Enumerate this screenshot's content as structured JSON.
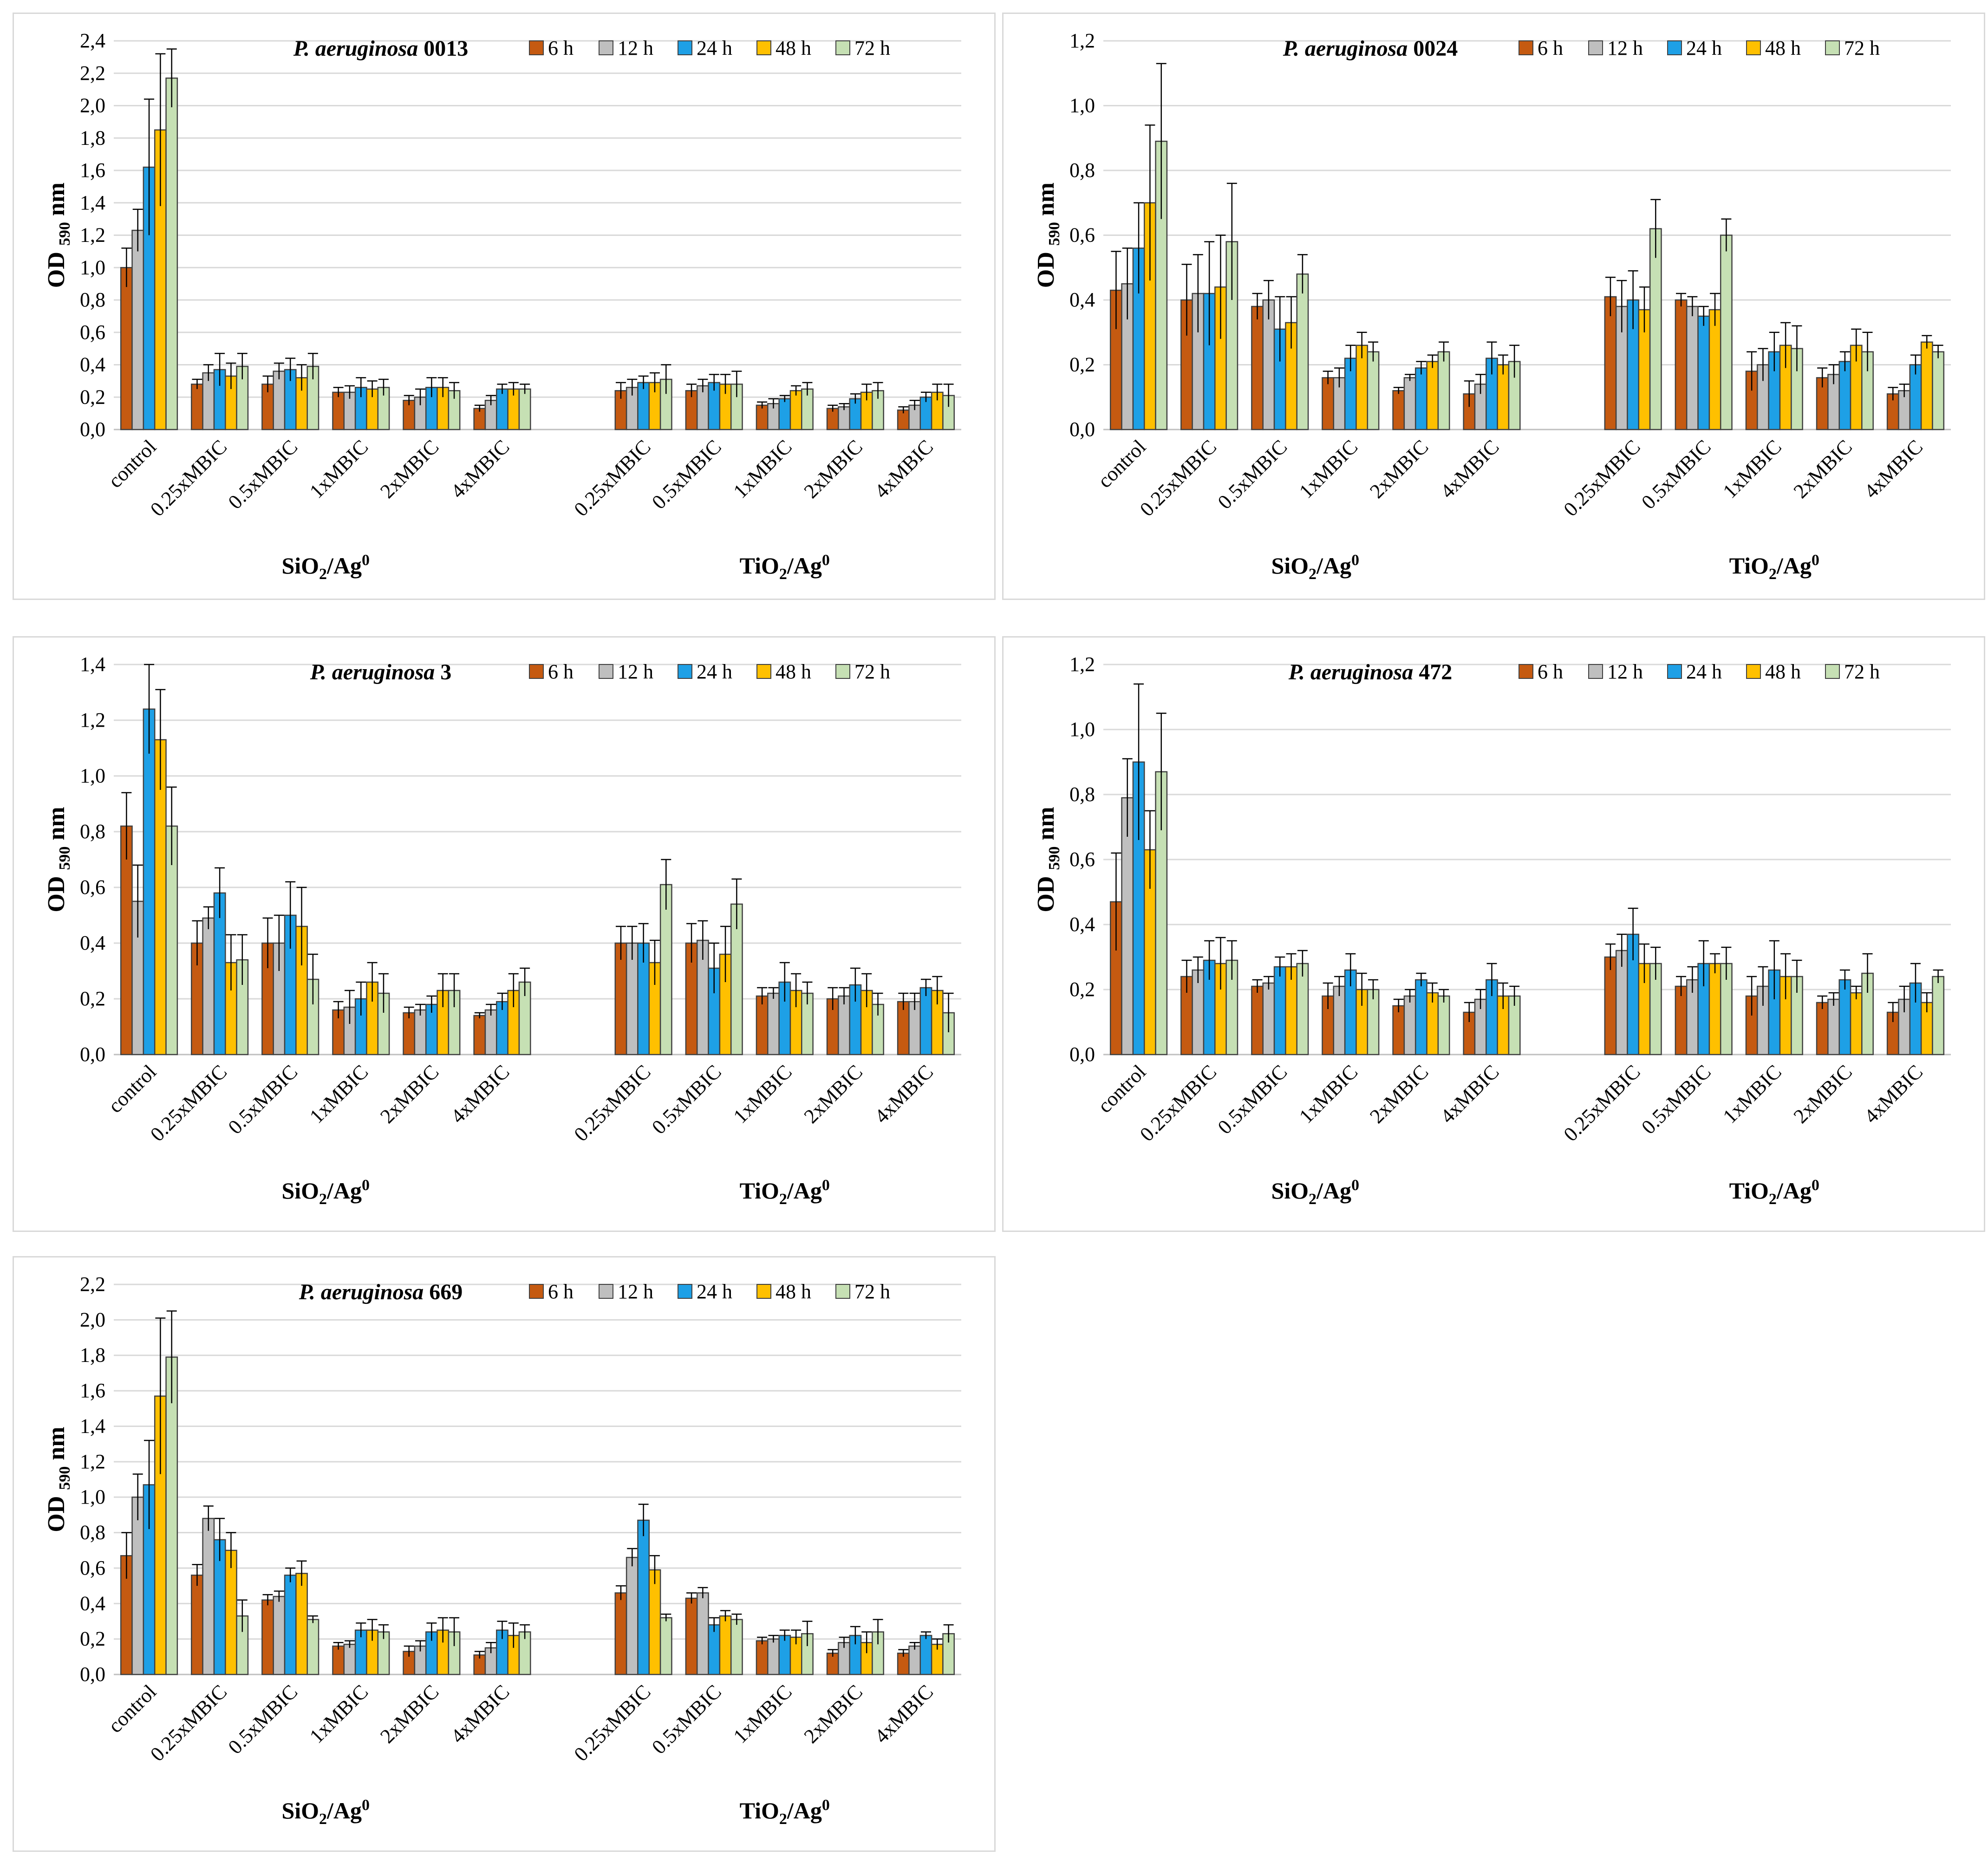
{
  "palette": {
    "6 h": "#c55a11",
    "12 h": "#bfbfbf",
    "24 h": "#1ea0e6",
    "48 h": "#ffc000",
    "72 h": "#c6e0b4"
  },
  "chart_data": [
    {
      "type": "bar",
      "title_italic": "P. aeruginosa",
      "title_strain": "0013",
      "ylabel": "OD",
      "ylabel_sub": "590",
      "ylabel_unit": "nm",
      "ylim": [
        0,
        2.4
      ],
      "ytick_step": 0.2,
      "ytick_labels": [
        "0,0",
        "0,2",
        "0,4",
        "0,6",
        "0,8",
        "1,0",
        "1,2",
        "1,4",
        "1,6",
        "1,8",
        "2,0",
        "2,2",
        "2,4"
      ],
      "legend": [
        "6 h",
        "12 h",
        "24 h",
        "48 h",
        "72 h"
      ],
      "categories": [
        "control",
        "0.25xMBIC",
        "0.5xMBIC",
        "1xMBIC",
        "2xMBIC",
        "4xMBIC",
        "",
        "0.25xMBIC",
        "0.5xMBIC",
        "1xMBIC",
        "2xMBIC",
        "4xMBIC"
      ],
      "group_labels": [
        {
          "main": "SiO",
          "sub": "2",
          "rest": "/Ag",
          "sup": "0"
        },
        {
          "main": "TiO",
          "sub": "2",
          "rest": "/Ag",
          "sup": "0"
        }
      ],
      "series": [
        {
          "name": "6 h",
          "values": [
            1.0,
            0.28,
            0.28,
            0.23,
            0.18,
            0.13,
            null,
            0.24,
            0.24,
            0.15,
            0.13,
            0.12
          ],
          "errors": [
            0.12,
            0.03,
            0.05,
            0.03,
            0.03,
            0.02,
            null,
            0.05,
            0.04,
            0.02,
            0.02,
            0.02
          ]
        },
        {
          "name": "12 h",
          "values": [
            1.23,
            0.35,
            0.36,
            0.23,
            0.2,
            0.18,
            null,
            0.26,
            0.27,
            0.16,
            0.14,
            0.15
          ],
          "errors": [
            0.13,
            0.05,
            0.05,
            0.04,
            0.05,
            0.03,
            null,
            0.05,
            0.04,
            0.03,
            0.02,
            0.03
          ]
        },
        {
          "name": "24 h",
          "values": [
            1.62,
            0.37,
            0.37,
            0.26,
            0.26,
            0.25,
            null,
            0.29,
            0.29,
            0.19,
            0.19,
            0.2
          ],
          "errors": [
            0.42,
            0.1,
            0.07,
            0.06,
            0.06,
            0.03,
            null,
            0.04,
            0.05,
            0.02,
            0.03,
            0.03
          ]
        },
        {
          "name": "48 h",
          "values": [
            1.85,
            0.33,
            0.32,
            0.25,
            0.26,
            0.25,
            null,
            0.29,
            0.28,
            0.24,
            0.23,
            0.23
          ],
          "errors": [
            0.47,
            0.08,
            0.08,
            0.05,
            0.06,
            0.04,
            null,
            0.06,
            0.06,
            0.03,
            0.05,
            0.05
          ]
        },
        {
          "name": "72 h",
          "values": [
            2.17,
            0.39,
            0.39,
            0.26,
            0.24,
            0.25,
            null,
            0.31,
            0.28,
            0.25,
            0.24,
            0.21
          ],
          "errors": [
            0.18,
            0.08,
            0.08,
            0.05,
            0.05,
            0.03,
            null,
            0.09,
            0.08,
            0.04,
            0.05,
            0.07
          ]
        }
      ]
    },
    {
      "type": "bar",
      "title_italic": "P. aeruginosa",
      "title_strain": "0024",
      "ylabel": "OD",
      "ylabel_sub": "590",
      "ylabel_unit": "nm",
      "ylim": [
        0,
        1.2
      ],
      "ytick_step": 0.2,
      "ytick_labels": [
        "0,0",
        "0,2",
        "0,4",
        "0,6",
        "0,8",
        "1,0",
        "1,2"
      ],
      "legend": [
        "6 h",
        "12 h",
        "24 h",
        "48 h",
        "72 h"
      ],
      "categories": [
        "control",
        "0.25xMBIC",
        "0.5xMBIC",
        "1xMBIC",
        "2xMBIC",
        "4xMBIC",
        "",
        "0.25xMBIC",
        "0.5xMBIC",
        "1xMBIC",
        "2xMBIC",
        "4xMBIC"
      ],
      "group_labels": [
        {
          "main": "SiO",
          "sub": "2",
          "rest": "/Ag",
          "sup": "0"
        },
        {
          "main": "TiO",
          "sub": "2",
          "rest": "/Ag",
          "sup": "0"
        }
      ],
      "series": [
        {
          "name": "6 h",
          "values": [
            0.43,
            0.4,
            0.38,
            0.16,
            0.12,
            0.11,
            null,
            0.41,
            0.4,
            0.18,
            0.16,
            0.11
          ],
          "errors": [
            0.12,
            0.11,
            0.04,
            0.02,
            0.01,
            0.04,
            null,
            0.06,
            0.02,
            0.06,
            0.03,
            0.02
          ]
        },
        {
          "name": "12 h",
          "values": [
            0.45,
            0.42,
            0.4,
            0.16,
            0.16,
            0.14,
            null,
            0.38,
            0.38,
            0.2,
            0.17,
            0.12
          ],
          "errors": [
            0.11,
            0.12,
            0.06,
            0.03,
            0.01,
            0.03,
            null,
            0.08,
            0.03,
            0.05,
            0.03,
            0.02
          ]
        },
        {
          "name": "24 h",
          "values": [
            0.56,
            0.42,
            0.31,
            0.22,
            0.19,
            0.22,
            null,
            0.4,
            0.35,
            0.24,
            0.21,
            0.2
          ],
          "errors": [
            0.14,
            0.16,
            0.1,
            0.04,
            0.02,
            0.05,
            null,
            0.09,
            0.03,
            0.06,
            0.03,
            0.03
          ]
        },
        {
          "name": "48 h",
          "values": [
            0.7,
            0.44,
            0.33,
            0.26,
            0.21,
            0.2,
            null,
            0.37,
            0.37,
            0.26,
            0.26,
            0.27
          ],
          "errors": [
            0.24,
            0.16,
            0.08,
            0.04,
            0.02,
            0.03,
            null,
            0.07,
            0.05,
            0.07,
            0.05,
            0.02
          ]
        },
        {
          "name": "72 h",
          "values": [
            0.89,
            0.58,
            0.48,
            0.24,
            0.24,
            0.21,
            null,
            0.62,
            0.6,
            0.25,
            0.24,
            0.24
          ],
          "errors": [
            0.24,
            0.18,
            0.06,
            0.03,
            0.03,
            0.05,
            null,
            0.09,
            0.05,
            0.07,
            0.06,
            0.02
          ]
        }
      ]
    },
    {
      "type": "bar",
      "title_italic": "P. aeruginosa",
      "title_strain": "3",
      "ylabel": "OD",
      "ylabel_sub": "590",
      "ylabel_unit": "nm",
      "ylim": [
        0,
        1.4
      ],
      "ytick_step": 0.2,
      "ytick_labels": [
        "0,0",
        "0,2",
        "0,4",
        "0,6",
        "0,8",
        "1,0",
        "1,2",
        "1,4"
      ],
      "legend": [
        "6 h",
        "12 h",
        "24 h",
        "48 h",
        "72 h"
      ],
      "categories": [
        "control",
        "0.25xMBIC",
        "0.5xMBIC",
        "1xMBIC",
        "2xMBIC",
        "4xMBIC",
        "",
        "0.25xMBIC",
        "0.5xMBIC",
        "1xMBIC",
        "2xMBIC",
        "4xMBIC"
      ],
      "group_labels": [
        {
          "main": "SiO",
          "sub": "2",
          "rest": "/Ag",
          "sup": "0"
        },
        {
          "main": "TiO",
          "sub": "2",
          "rest": "/Ag",
          "sup": "0"
        }
      ],
      "series": [
        {
          "name": "6 h",
          "values": [
            0.82,
            0.4,
            0.4,
            0.16,
            0.15,
            0.14,
            null,
            0.4,
            0.4,
            0.21,
            0.2,
            0.19
          ],
          "errors": [
            0.12,
            0.08,
            0.09,
            0.03,
            0.02,
            0.01,
            null,
            0.06,
            0.07,
            0.03,
            0.04,
            0.03
          ]
        },
        {
          "name": "12 h",
          "values": [
            0.55,
            0.49,
            0.4,
            0.17,
            0.16,
            0.16,
            null,
            0.4,
            0.41,
            0.22,
            0.21,
            0.19
          ],
          "errors": [
            0.13,
            0.04,
            0.1,
            0.06,
            0.02,
            0.02,
            null,
            0.06,
            0.07,
            0.02,
            0.03,
            0.03
          ]
        },
        {
          "name": "24 h",
          "values": [
            1.24,
            0.58,
            0.5,
            0.2,
            0.18,
            0.19,
            null,
            0.4,
            0.31,
            0.26,
            0.25,
            0.24
          ],
          "errors": [
            0.16,
            0.09,
            0.12,
            0.06,
            0.03,
            0.03,
            null,
            0.07,
            0.09,
            0.07,
            0.06,
            0.03
          ]
        },
        {
          "name": "48 h",
          "values": [
            1.13,
            0.33,
            0.46,
            0.26,
            0.23,
            0.23,
            null,
            0.33,
            0.36,
            0.23,
            0.23,
            0.23
          ],
          "errors": [
            0.18,
            0.1,
            0.14,
            0.07,
            0.06,
            0.06,
            null,
            0.08,
            0.1,
            0.06,
            0.06,
            0.05
          ]
        },
        {
          "name": "72 h",
          "values": [
            0.82,
            0.34,
            0.27,
            0.22,
            0.23,
            0.26,
            null,
            0.61,
            0.54,
            0.22,
            0.18,
            0.15
          ],
          "errors": [
            0.14,
            0.09,
            0.09,
            0.07,
            0.06,
            0.05,
            null,
            0.09,
            0.09,
            0.04,
            0.04,
            0.07
          ]
        }
      ]
    },
    {
      "type": "bar",
      "title_italic": "P. aeruginosa",
      "title_strain": "472",
      "ylabel": "OD",
      "ylabel_sub": "590",
      "ylabel_unit": "nm",
      "ylim": [
        0,
        1.2
      ],
      "ytick_step": 0.2,
      "ytick_labels": [
        "0,0",
        "0,2",
        "0,4",
        "0,6",
        "0,8",
        "1,0",
        "1,2"
      ],
      "legend": [
        "6 h",
        "12 h",
        "24 h",
        "48 h",
        "72 h"
      ],
      "categories": [
        "control",
        "0.25xMBIC",
        "0.5xMBIC",
        "1xMBIC",
        "2xMBIC",
        "4xMBIC",
        "",
        "0.25xMBIC",
        "0.5xMBIC",
        "1xMBIC",
        "2xMBIC",
        "4xMBIC"
      ],
      "group_labels": [
        {
          "main": "SiO",
          "sub": "2",
          "rest": "/Ag",
          "sup": "0"
        },
        {
          "main": "TiO",
          "sub": "2",
          "rest": "/Ag",
          "sup": "0"
        }
      ],
      "series": [
        {
          "name": "6 h",
          "values": [
            0.47,
            0.24,
            0.21,
            0.18,
            0.15,
            0.13,
            null,
            0.3,
            0.21,
            0.18,
            0.16,
            0.13
          ],
          "errors": [
            0.15,
            0.05,
            0.02,
            0.04,
            0.02,
            0.03,
            null,
            0.04,
            0.03,
            0.06,
            0.02,
            0.03
          ]
        },
        {
          "name": "12 h",
          "values": [
            0.79,
            0.26,
            0.22,
            0.21,
            0.18,
            0.17,
            null,
            0.32,
            0.23,
            0.21,
            0.17,
            0.17
          ],
          "errors": [
            0.12,
            0.04,
            0.02,
            0.03,
            0.02,
            0.03,
            null,
            0.05,
            0.04,
            0.06,
            0.02,
            0.04
          ]
        },
        {
          "name": "24 h",
          "values": [
            0.9,
            0.29,
            0.27,
            0.26,
            0.23,
            0.23,
            null,
            0.37,
            0.28,
            0.26,
            0.23,
            0.22
          ],
          "errors": [
            0.24,
            0.06,
            0.03,
            0.05,
            0.02,
            0.05,
            null,
            0.08,
            0.07,
            0.09,
            0.03,
            0.06
          ]
        },
        {
          "name": "48 h",
          "values": [
            0.63,
            0.28,
            0.27,
            0.2,
            0.19,
            0.18,
            null,
            0.28,
            0.28,
            0.24,
            0.19,
            0.16
          ],
          "errors": [
            0.12,
            0.08,
            0.04,
            0.05,
            0.03,
            0.04,
            null,
            0.06,
            0.03,
            0.07,
            0.02,
            0.03
          ]
        },
        {
          "name": "72 h",
          "values": [
            0.87,
            0.29,
            0.28,
            0.2,
            0.18,
            0.18,
            null,
            0.28,
            0.28,
            0.24,
            0.25,
            0.24
          ],
          "errors": [
            0.18,
            0.06,
            0.04,
            0.03,
            0.02,
            0.03,
            null,
            0.05,
            0.05,
            0.05,
            0.06,
            0.02
          ]
        }
      ]
    },
    {
      "type": "bar",
      "title_italic": "P. aeruginosa",
      "title_strain": "669",
      "ylabel": "OD",
      "ylabel_sub": "590",
      "ylabel_unit": "nm",
      "ylim": [
        0,
        2.2
      ],
      "ytick_step": 0.2,
      "ytick_labels": [
        "0,0",
        "0,2",
        "0,4",
        "0,6",
        "0,8",
        "1,0",
        "1,2",
        "1,4",
        "1,6",
        "1,8",
        "2,0",
        "2,2"
      ],
      "legend": [
        "6 h",
        "12 h",
        "24 h",
        "48 h",
        "72 h"
      ],
      "categories": [
        "control",
        "0.25xMBIC",
        "0.5xMBIC",
        "1xMBIC",
        "2xMBIC",
        "4xMBIC",
        "",
        "0.25xMBIC",
        "0.5xMBIC",
        "1xMBIC",
        "2xMBIC",
        "4xMBIC"
      ],
      "group_labels": [
        {
          "main": "SiO",
          "sub": "2",
          "rest": "/Ag",
          "sup": "0"
        },
        {
          "main": "TiO",
          "sub": "2",
          "rest": "/Ag",
          "sup": "0"
        }
      ],
      "series": [
        {
          "name": "6 h",
          "values": [
            0.67,
            0.56,
            0.42,
            0.16,
            0.13,
            0.11,
            null,
            0.46,
            0.43,
            0.19,
            0.12,
            0.12
          ],
          "errors": [
            0.13,
            0.06,
            0.03,
            0.02,
            0.03,
            0.02,
            null,
            0.04,
            0.03,
            0.02,
            0.02,
            0.02
          ]
        },
        {
          "name": "12 h",
          "values": [
            1.0,
            0.88,
            0.44,
            0.17,
            0.16,
            0.15,
            null,
            0.66,
            0.46,
            0.2,
            0.18,
            0.16
          ],
          "errors": [
            0.13,
            0.07,
            0.03,
            0.02,
            0.03,
            0.03,
            null,
            0.05,
            0.03,
            0.02,
            0.03,
            0.02
          ]
        },
        {
          "name": "24 h",
          "values": [
            1.07,
            0.76,
            0.56,
            0.25,
            0.24,
            0.25,
            null,
            0.87,
            0.28,
            0.22,
            0.22,
            0.22
          ],
          "errors": [
            0.25,
            0.12,
            0.04,
            0.04,
            0.05,
            0.05,
            null,
            0.09,
            0.04,
            0.03,
            0.05,
            0.02
          ]
        },
        {
          "name": "48 h",
          "values": [
            1.57,
            0.7,
            0.57,
            0.25,
            0.25,
            0.22,
            null,
            0.59,
            0.33,
            0.21,
            0.18,
            0.17
          ],
          "errors": [
            0.44,
            0.1,
            0.07,
            0.06,
            0.07,
            0.07,
            null,
            0.08,
            0.03,
            0.04,
            0.06,
            0.03
          ]
        },
        {
          "name": "72 h",
          "values": [
            1.79,
            0.33,
            0.31,
            0.24,
            0.24,
            0.24,
            null,
            0.32,
            0.31,
            0.23,
            0.24,
            0.23
          ],
          "errors": [
            0.26,
            0.09,
            0.02,
            0.04,
            0.08,
            0.04,
            null,
            0.02,
            0.03,
            0.07,
            0.07,
            0.05
          ]
        }
      ]
    }
  ]
}
